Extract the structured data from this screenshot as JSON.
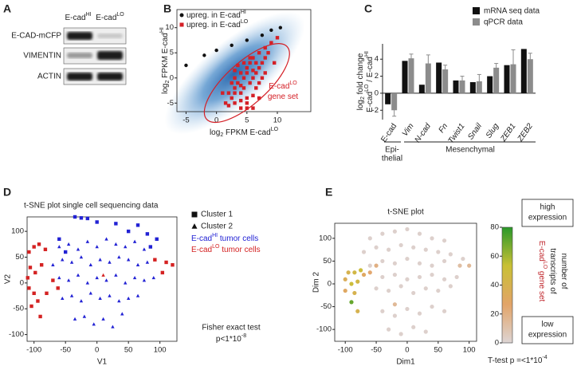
{
  "blot": {
    "panel": "A",
    "columns": [
      [
        {
          "text": "E-cad"
        },
        {
          "text": "HI",
          "style": "sup"
        }
      ],
      [
        {
          "text": "E-cad"
        },
        {
          "text": "LO",
          "style": "sup"
        }
      ]
    ],
    "rows": [
      "E-CAD-mCFP",
      "VIMENTIN",
      "ACTIN"
    ]
  },
  "chart_data": [
    {
      "panel": "B",
      "type": "scatter",
      "xlabel": [
        {
          "text": "log"
        },
        {
          "text": "2",
          "style": "sub"
        },
        {
          "text": " FPKM E-cad"
        },
        {
          "text": "LO",
          "style": "sup"
        }
      ],
      "ylabel": [
        {
          "text": "log"
        },
        {
          "text": "2",
          "style": "sub"
        },
        {
          "text": " FPKM E-cad"
        },
        {
          "text": "HI",
          "style": "sup"
        }
      ],
      "xlim": [
        -6.5,
        15.5
      ],
      "ylim": [
        -6.7,
        13.6
      ],
      "xticks": [
        -5,
        0,
        5,
        10
      ],
      "yticks": [
        -5,
        0,
        5,
        10
      ],
      "legend": "upper left",
      "series": [
        {
          "name": [
            {
              "text": "upreg. in E-cad"
            },
            {
              "text": "HI",
              "style": "sup"
            }
          ],
          "color": "#111111",
          "marker": "circle",
          "x": [
            -5,
            -2,
            0,
            2.5,
            5,
            7.5,
            9,
            10.5
          ],
          "y": [
            2.5,
            4.5,
            5.5,
            6.5,
            7.5,
            8.5,
            9.5,
            10
          ]
        },
        {
          "name": [
            {
              "text": "upreg. in E-cad"
            },
            {
              "text": "LO",
              "style": "sup"
            }
          ],
          "color": "#d42027",
          "marker": "square",
          "x": [
            1.5,
            2,
            2.5,
            3,
            3,
            3.5,
            4,
            4,
            4.5,
            4.5,
            5,
            5,
            5.5,
            5.5,
            6,
            6,
            6.5,
            6.5,
            7,
            7,
            7.5,
            7.5,
            8,
            8,
            8.5,
            9,
            2,
            3,
            4,
            5,
            6,
            7,
            3.5,
            4.5,
            5.5,
            6.5,
            4,
            5,
            6,
            2.5,
            3,
            8,
            9.5,
            7,
            1,
            5,
            6,
            4,
            3,
            10
          ],
          "y": [
            -5,
            -3,
            -4,
            -2,
            0,
            -1,
            -3,
            1,
            -2,
            0,
            -4,
            2,
            -1,
            3,
            0,
            4,
            1,
            -2,
            2,
            5,
            3,
            0,
            4,
            6,
            5,
            7,
            -5.5,
            -5,
            -4.5,
            -5,
            -3.5,
            -1,
            2.5,
            3,
            4,
            3,
            -6,
            -6,
            -6,
            -1,
            -3,
            1,
            3,
            -4,
            -3,
            1,
            1.5,
            -1.5,
            1.5,
            8
          ]
        }
      ],
      "annotation": [
        [
          {
            "text": "E-cad"
          },
          {
            "text": "LO",
            "style": "sup"
          }
        ],
        [
          {
            "text": "gene set"
          }
        ]
      ],
      "annotation_color": "#d42027"
    },
    {
      "panel": "C",
      "type": "bar",
      "ylabel_lines": [
        [
          {
            "text": "log"
          },
          {
            "text": "2",
            "style": "sub"
          },
          {
            "text": " fold change"
          }
        ],
        [
          {
            "text": "E-cad"
          },
          {
            "text": "LO",
            "style": "sup"
          },
          {
            "text": " / E-cad"
          },
          {
            "text": "HI",
            "style": "sup"
          }
        ]
      ],
      "categories": [
        "E-cad",
        "Vim",
        "N-cad",
        "Fn",
        "Twist1",
        "Snail",
        "Slug",
        "ZEB1",
        "ZEB2"
      ],
      "category_styles": [
        "normal",
        "italic",
        "italic",
        "italic",
        "italic",
        "italic",
        "italic",
        "italic",
        "italic"
      ],
      "ylim": [
        -3.1,
        5.8
      ],
      "yticks": [
        -2,
        0,
        2,
        4
      ],
      "series": [
        {
          "name": "mRNA seq data",
          "color": "#111111",
          "values": [
            -1.3,
            3.8,
            1.0,
            3.6,
            1.5,
            1.3,
            2.0,
            3.3,
            5.2
          ]
        },
        {
          "name": "qPCR data",
          "color": "#8c8c8c",
          "values": [
            -2.0,
            4.1,
            3.5,
            2.8,
            1.5,
            1.4,
            3.0,
            3.4,
            4.0
          ],
          "errors": [
            0.7,
            0.5,
            1.0,
            0.5,
            0.5,
            0.8,
            0.5,
            1.7,
            0.7
          ]
        }
      ],
      "groups": {
        "epithelial": [
          "Epi-",
          "thelial"
        ],
        "mesenchymal": "Mesenchymal"
      }
    },
    {
      "panel": "D",
      "type": "scatter",
      "title": "t-SNE plot single cell sequencing data",
      "xlabel": "V1",
      "ylabel": "V2",
      "xlim": [
        -111,
        127
      ],
      "ylim": [
        -113,
        128
      ],
      "xticks": [
        -100,
        -50,
        0,
        50,
        100
      ],
      "yticks": [
        -100,
        -50,
        0,
        50,
        100
      ],
      "shape_legend": [
        {
          "name": "Cluster 1",
          "marker": "square"
        },
        {
          "name": "Cluster 2",
          "marker": "triangle"
        }
      ],
      "color_legend": [
        {
          "name": [
            {
              "text": "E-cad"
            },
            {
              "text": "HI",
              "style": "sup"
            },
            {
              "text": " tumor cells"
            }
          ],
          "color": "#2222d4"
        },
        {
          "name": [
            {
              "text": "E-cad"
            },
            {
              "text": "LO",
              "style": "sup"
            },
            {
              "text": " tumor cells"
            }
          ],
          "color": "#d42222"
        }
      ],
      "series": [
        {
          "marker": "square",
          "color": "#2222d4",
          "x": [
            -35,
            -25,
            -15,
            0,
            30,
            50,
            65,
            80,
            95,
            85,
            -60,
            -50
          ],
          "y": [
            128,
            126,
            125,
            118,
            115,
            100,
            112,
            95,
            85,
            70,
            85,
            60
          ]
        },
        {
          "marker": "square",
          "color": "#d42222",
          "x": [
            -108,
            -100,
            -92,
            -82,
            -106,
            -98,
            -88,
            -110,
            -108,
            -100,
            -94,
            -80,
            -62,
            -104,
            -90,
            -70,
            110,
            104,
            120,
            92
          ],
          "y": [
            60,
            70,
            75,
            65,
            30,
            20,
            35,
            10,
            -10,
            -20,
            -35,
            -20,
            -10,
            -45,
            -65,
            5,
            40,
            20,
            35,
            45
          ]
        },
        {
          "marker": "triangle",
          "color": "#2222d4",
          "x": [
            -60,
            -45,
            -30,
            -15,
            0,
            15,
            30,
            45,
            60,
            75,
            -70,
            -55,
            -40,
            -25,
            -10,
            5,
            20,
            35,
            50,
            65,
            80,
            -60,
            -45,
            -30,
            -15,
            0,
            15,
            30,
            45,
            60,
            75,
            90,
            -55,
            -40,
            -25,
            -10,
            5,
            20,
            35,
            50,
            65,
            -35,
            -20,
            -5,
            10,
            25,
            40
          ],
          "y": [
            70,
            75,
            65,
            80,
            70,
            85,
            75,
            70,
            80,
            65,
            35,
            45,
            40,
            50,
            35,
            45,
            40,
            50,
            45,
            35,
            40,
            10,
            5,
            15,
            0,
            10,
            5,
            15,
            0,
            10,
            5,
            10,
            -30,
            -25,
            -35,
            -20,
            -30,
            -25,
            -35,
            -30,
            -25,
            -70,
            -65,
            -80,
            -70,
            -85,
            -60
          ]
        },
        {
          "marker": "triangle",
          "color": "#d42222",
          "x": [
            10
          ],
          "y": [
            15
          ]
        }
      ],
      "stats": [
        "Fisher exact test",
        [
          {
            "text": "p<1*10"
          },
          {
            "text": "-8",
            "style": "sup"
          }
        ]
      ]
    },
    {
      "panel": "E",
      "type": "scatter",
      "title": "t-SNE plot",
      "xlabel": "Dim1",
      "ylabel": "Dim 2",
      "xlim": [
        -117,
        112
      ],
      "ylim": [
        -126,
        133
      ],
      "xticks": [
        -100,
        -50,
        0,
        50,
        100
      ],
      "yticks": [
        -100,
        -50,
        0,
        50,
        100
      ],
      "series": [
        {
          "marker": "circle",
          "x": [
            -60,
            -40,
            -20,
            0,
            20,
            40,
            60,
            -70,
            -50,
            -30,
            -10,
            10,
            30,
            50,
            70,
            90,
            -60,
            -40,
            -20,
            0,
            20,
            40,
            60,
            -40,
            -20,
            0,
            20,
            40,
            60,
            80,
            -50,
            -30,
            -10,
            10,
            30,
            50,
            70,
            -40,
            -20,
            0,
            20,
            40,
            60,
            -30,
            -10,
            10,
            30,
            -95,
            -85,
            -75,
            -100,
            -90,
            -80,
            -100,
            -85,
            -90,
            -80,
            -60,
            -50,
            -70,
            100,
            85,
            -20
          ],
          "y": [
            100,
            110,
            115,
            120,
            110,
            100,
            95,
            70,
            80,
            75,
            85,
            80,
            75,
            70,
            65,
            55,
            40,
            50,
            45,
            55,
            45,
            40,
            50,
            15,
            20,
            10,
            15,
            20,
            10,
            15,
            -10,
            -15,
            -5,
            -20,
            -10,
            -15,
            -5,
            -60,
            -70,
            -55,
            -65,
            -50,
            -60,
            -100,
            -110,
            -95,
            -105,
            25,
            25,
            30,
            10,
            0,
            5,
            -15,
            -20,
            -40,
            -60,
            25,
            40,
            20,
            40,
            40,
            -45
          ],
          "values": [
            2,
            2,
            2,
            2,
            2,
            2,
            2,
            2,
            2,
            2,
            2,
            2,
            2,
            2,
            2,
            2,
            2,
            2,
            2,
            2,
            2,
            2,
            2,
            2,
            2,
            2,
            2,
            2,
            2,
            2,
            2,
            2,
            2,
            2,
            2,
            2,
            2,
            2,
            2,
            2,
            2,
            2,
            2,
            2,
            2,
            2,
            2,
            40,
            45,
            50,
            35,
            50,
            45,
            30,
            40,
            70,
            40,
            25,
            20,
            30,
            15,
            12,
            15
          ]
        }
      ],
      "colorbar": {
        "lim": [
          0,
          80
        ],
        "ticks": [
          0,
          20,
          40,
          60,
          80
        ],
        "colors": [
          "#ddd4d4",
          "#e2a468",
          "#c9c035",
          "#2a982a"
        ],
        "high": [
          "high",
          "expression"
        ],
        "low": [
          "low",
          "expression"
        ],
        "label": [
          [
            {
              "text": "number of"
            }
          ],
          [
            {
              "text": "transcripts of"
            }
          ],
          [
            {
              "text": "E-cad"
            },
            {
              "text": "LO",
              "style": "sup"
            },
            {
              "text": " gene set"
            }
          ]
        ],
        "label_colors": [
          "#222222",
          "#222222",
          "#c0282e"
        ]
      },
      "stats": [
        {
          "text": "T-test p =<1*10"
        },
        {
          "text": "-4",
          "style": "sup"
        }
      ]
    }
  ]
}
